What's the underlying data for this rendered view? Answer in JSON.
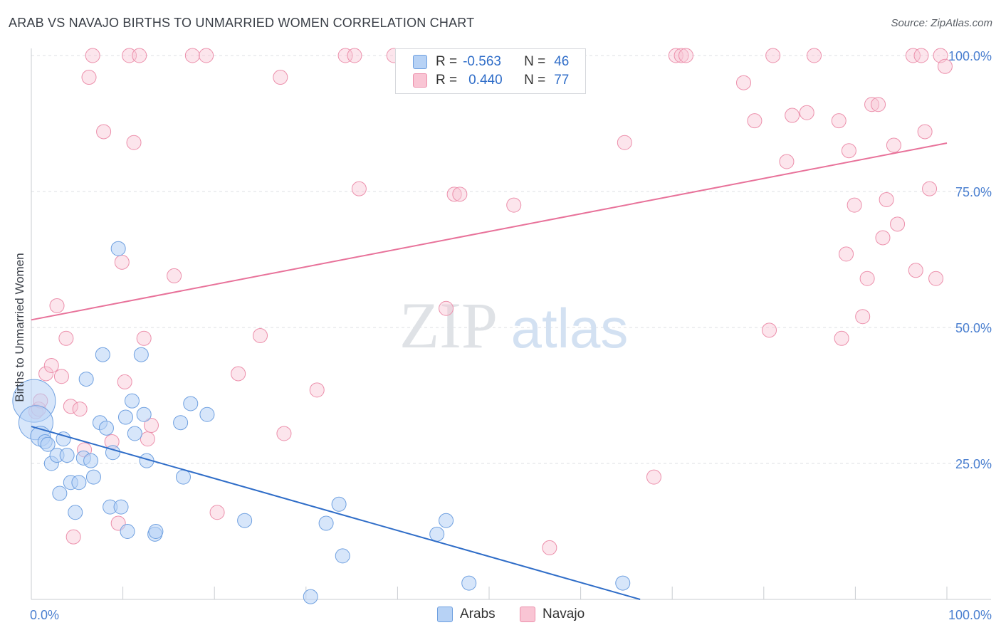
{
  "title": "ARAB VS NAVAJO BIRTHS TO UNMARRIED WOMEN CORRELATION CHART",
  "source": "Source: ZipAtlas.com",
  "watermark": {
    "zip": "ZIP",
    "atlas": "atlas"
  },
  "legend": {
    "r_label": "R =",
    "n_label": "N =",
    "arabs_r": "-0.563",
    "arabs_n": "46",
    "navajo_r": "0.440",
    "navajo_n": "77"
  },
  "bottom_legend": {
    "arabs": "Arabs",
    "navajo": "Navajo"
  },
  "colors": {
    "arabs": "#2f6dc8",
    "navajo": "#e8729a",
    "arabs_fill": "#b7d2f5",
    "navajo_fill": "#f9c5d4",
    "tick_label": "#4a7fd0"
  },
  "chart_data": {
    "type": "scatter",
    "title": "ARAB VS NAVAJO BIRTHS TO UNMARRIED WOMEN CORRELATION CHART",
    "xlabel": "",
    "ylabel": "Births to Unmarried Women",
    "xlim": [
      0,
      100
    ],
    "ylim": [
      0,
      100
    ],
    "x_tick_labels": [
      "0.0%",
      "100.0%"
    ],
    "y_tick_labels": [
      "25.0%",
      "50.0%",
      "75.0%",
      "100.0%"
    ],
    "y_ticks": [
      25,
      50,
      75,
      100
    ],
    "grid": true,
    "legend_position": "top-center",
    "series": [
      {
        "name": "Arabs",
        "r": -0.563,
        "n": 46,
        "trend": {
          "x": [
            0,
            66.5
          ],
          "y": [
            31.8,
            0
          ]
        },
        "points": [
          [
            0.3,
            36.5,
            30
          ],
          [
            0.5,
            32.5,
            24
          ],
          [
            1.0,
            30.0,
            14
          ],
          [
            1.5,
            29.0,
            10
          ],
          [
            1.8,
            28.5,
            10
          ],
          [
            2.2,
            25.0,
            10
          ],
          [
            2.8,
            26.5,
            10
          ],
          [
            3.1,
            19.5,
            10
          ],
          [
            3.5,
            29.5,
            10
          ],
          [
            3.9,
            26.5,
            10
          ],
          [
            4.3,
            21.5,
            10
          ],
          [
            4.8,
            16.0,
            10
          ],
          [
            5.2,
            21.5,
            10
          ],
          [
            5.7,
            26.0,
            10
          ],
          [
            6.0,
            40.5,
            10
          ],
          [
            6.5,
            25.5,
            10
          ],
          [
            6.8,
            22.5,
            10
          ],
          [
            7.5,
            32.5,
            10
          ],
          [
            7.8,
            45.0,
            10
          ],
          [
            8.2,
            31.5,
            10
          ],
          [
            8.6,
            17.0,
            10
          ],
          [
            8.9,
            27.0,
            10
          ],
          [
            9.5,
            64.5,
            10
          ],
          [
            9.8,
            17.0,
            10
          ],
          [
            10.3,
            33.5,
            10
          ],
          [
            10.5,
            12.5,
            10
          ],
          [
            11.0,
            36.5,
            10
          ],
          [
            11.3,
            30.5,
            10
          ],
          [
            12.0,
            45.0,
            10
          ],
          [
            12.3,
            34.0,
            10
          ],
          [
            12.6,
            25.5,
            10
          ],
          [
            13.5,
            12.0,
            10
          ],
          [
            13.6,
            12.5,
            10
          ],
          [
            16.3,
            32.5,
            10
          ],
          [
            16.6,
            22.5,
            10
          ],
          [
            17.4,
            36.0,
            10
          ],
          [
            19.2,
            34.0,
            10
          ],
          [
            23.3,
            14.5,
            10
          ],
          [
            30.5,
            0.5,
            10
          ],
          [
            32.2,
            14.0,
            10
          ],
          [
            33.6,
            17.5,
            10
          ],
          [
            34.0,
            8.0,
            10
          ],
          [
            44.3,
            12.0,
            10
          ],
          [
            45.3,
            14.5,
            10
          ],
          [
            47.8,
            3.0,
            10
          ],
          [
            64.6,
            3.0,
            10
          ]
        ]
      },
      {
        "name": "Navajo",
        "r": 0.44,
        "n": 77,
        "trend": {
          "x": [
            0,
            100
          ],
          "y": [
            51.4,
            83.9
          ]
        },
        "points": [
          [
            0.5,
            34.5,
            10
          ],
          [
            0.8,
            35.0,
            10
          ],
          [
            1.0,
            36.5,
            10
          ],
          [
            1.6,
            41.5,
            10
          ],
          [
            2.2,
            43.0,
            10
          ],
          [
            2.8,
            54.0,
            10
          ],
          [
            3.3,
            41.0,
            10
          ],
          [
            3.8,
            48.0,
            10
          ],
          [
            4.3,
            35.5,
            10
          ],
          [
            4.6,
            11.5,
            10
          ],
          [
            5.3,
            35.0,
            10
          ],
          [
            5.8,
            27.5,
            10
          ],
          [
            6.3,
            96.0,
            10
          ],
          [
            6.7,
            100.0,
            10
          ],
          [
            7.9,
            86.0,
            10
          ],
          [
            8.8,
            29.0,
            10
          ],
          [
            9.5,
            14.0,
            10
          ],
          [
            9.9,
            62.0,
            10
          ],
          [
            10.2,
            40.0,
            10
          ],
          [
            10.7,
            100.0,
            10
          ],
          [
            11.2,
            84.0,
            10
          ],
          [
            11.8,
            100.0,
            10
          ],
          [
            12.3,
            48.0,
            10
          ],
          [
            12.7,
            29.5,
            10
          ],
          [
            13.1,
            32.0,
            10
          ],
          [
            15.6,
            59.5,
            10
          ],
          [
            17.6,
            100.0,
            10
          ],
          [
            19.1,
            100.0,
            10
          ],
          [
            20.3,
            16.0,
            10
          ],
          [
            22.6,
            41.5,
            10
          ],
          [
            25.0,
            48.5,
            10
          ],
          [
            27.2,
            96.0,
            10
          ],
          [
            27.6,
            30.5,
            10
          ],
          [
            31.2,
            38.5,
            10
          ],
          [
            34.3,
            100.0,
            10
          ],
          [
            35.3,
            100.0,
            10
          ],
          [
            35.8,
            75.5,
            10
          ],
          [
            39.6,
            100.0,
            10
          ],
          [
            45.3,
            53.5,
            10
          ],
          [
            46.2,
            74.5,
            10
          ],
          [
            46.8,
            74.5,
            10
          ],
          [
            52.7,
            72.5,
            10
          ],
          [
            56.6,
            9.5,
            10
          ],
          [
            64.8,
            84.0,
            10
          ],
          [
            68.0,
            22.5,
            10
          ],
          [
            70.4,
            100.0,
            10
          ],
          [
            71.0,
            100.0,
            10
          ],
          [
            71.5,
            100.0,
            10
          ],
          [
            77.8,
            95.0,
            10
          ],
          [
            79.0,
            88.0,
            10
          ],
          [
            80.6,
            49.5,
            10
          ],
          [
            81.0,
            100.0,
            10
          ],
          [
            82.5,
            80.5,
            10
          ],
          [
            83.1,
            89.0,
            10
          ],
          [
            84.7,
            89.5,
            10
          ],
          [
            85.5,
            100.0,
            10
          ],
          [
            88.2,
            88.0,
            10
          ],
          [
            88.5,
            48.0,
            10
          ],
          [
            89.0,
            63.5,
            10
          ],
          [
            89.3,
            82.5,
            10
          ],
          [
            89.9,
            72.5,
            10
          ],
          [
            90.8,
            52.0,
            10
          ],
          [
            91.3,
            59.0,
            10
          ],
          [
            91.8,
            91.0,
            10
          ],
          [
            92.5,
            91.0,
            10
          ],
          [
            93.0,
            66.5,
            10
          ],
          [
            93.4,
            73.5,
            10
          ],
          [
            94.2,
            83.5,
            10
          ],
          [
            94.6,
            69.0,
            10
          ],
          [
            96.3,
            100.0,
            10
          ],
          [
            96.6,
            60.5,
            10
          ],
          [
            97.2,
            100.0,
            10
          ],
          [
            97.6,
            86.0,
            10
          ],
          [
            98.1,
            75.5,
            10
          ],
          [
            98.8,
            59.0,
            10
          ],
          [
            99.3,
            100.0,
            10
          ],
          [
            99.8,
            98.0,
            10
          ]
        ]
      }
    ]
  }
}
